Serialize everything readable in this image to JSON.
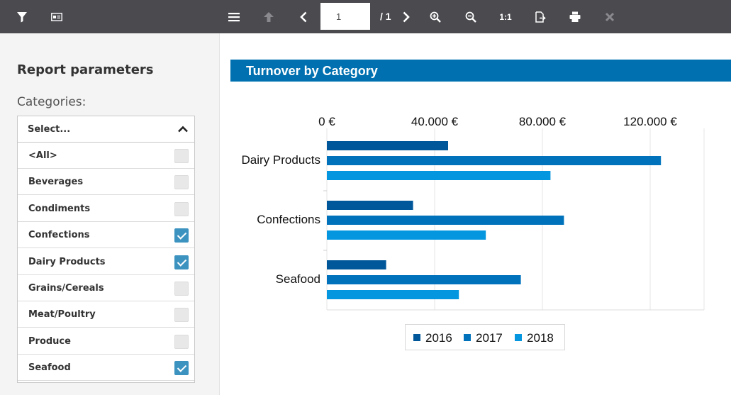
{
  "toolbar": {
    "page_value": "1",
    "page_total": "/ 1",
    "ratio_label": "1:1"
  },
  "sidebar": {
    "title": "Report parameters",
    "categories_label": "Categories:",
    "select_placeholder": "Select...",
    "items": [
      {
        "label": "<All>",
        "checked": false
      },
      {
        "label": "Beverages",
        "checked": false
      },
      {
        "label": "Condiments",
        "checked": false
      },
      {
        "label": "Confections",
        "checked": true
      },
      {
        "label": "Dairy Products",
        "checked": true
      },
      {
        "label": "Grains/Cereals",
        "checked": false
      },
      {
        "label": "Meat/Poultry",
        "checked": false
      },
      {
        "label": "Produce",
        "checked": false
      },
      {
        "label": "Seafood",
        "checked": true
      }
    ]
  },
  "report": {
    "title": "Turnover by Category"
  },
  "colors": {
    "toolbar_bg": "#4a4a4f",
    "banner": "#0070b0",
    "checkbox_on": "#3d93c0",
    "series_2016": "#00579a",
    "series_2017": "#0072bc",
    "series_2018": "#0497df"
  },
  "chart_data": {
    "type": "bar",
    "orientation": "horizontal",
    "categories": [
      "Dairy Products",
      "Confections",
      "Seafood"
    ],
    "series": [
      {
        "name": "2016",
        "color": "#00579a",
        "values": [
          45000,
          32000,
          22000
        ]
      },
      {
        "name": "2017",
        "color": "#0072bc",
        "values": [
          124000,
          88000,
          72000
        ]
      },
      {
        "name": "2018",
        "color": "#0497df",
        "values": [
          83000,
          59000,
          49000
        ]
      }
    ],
    "xlim": [
      0,
      140000
    ],
    "x_ticks": [
      0,
      40000,
      80000,
      120000
    ],
    "x_tick_labels": [
      "0 €",
      "40.000 €",
      "80.000 €",
      "120.000 €"
    ],
    "axis_position": "top",
    "grid": true,
    "legend": "bottom"
  }
}
